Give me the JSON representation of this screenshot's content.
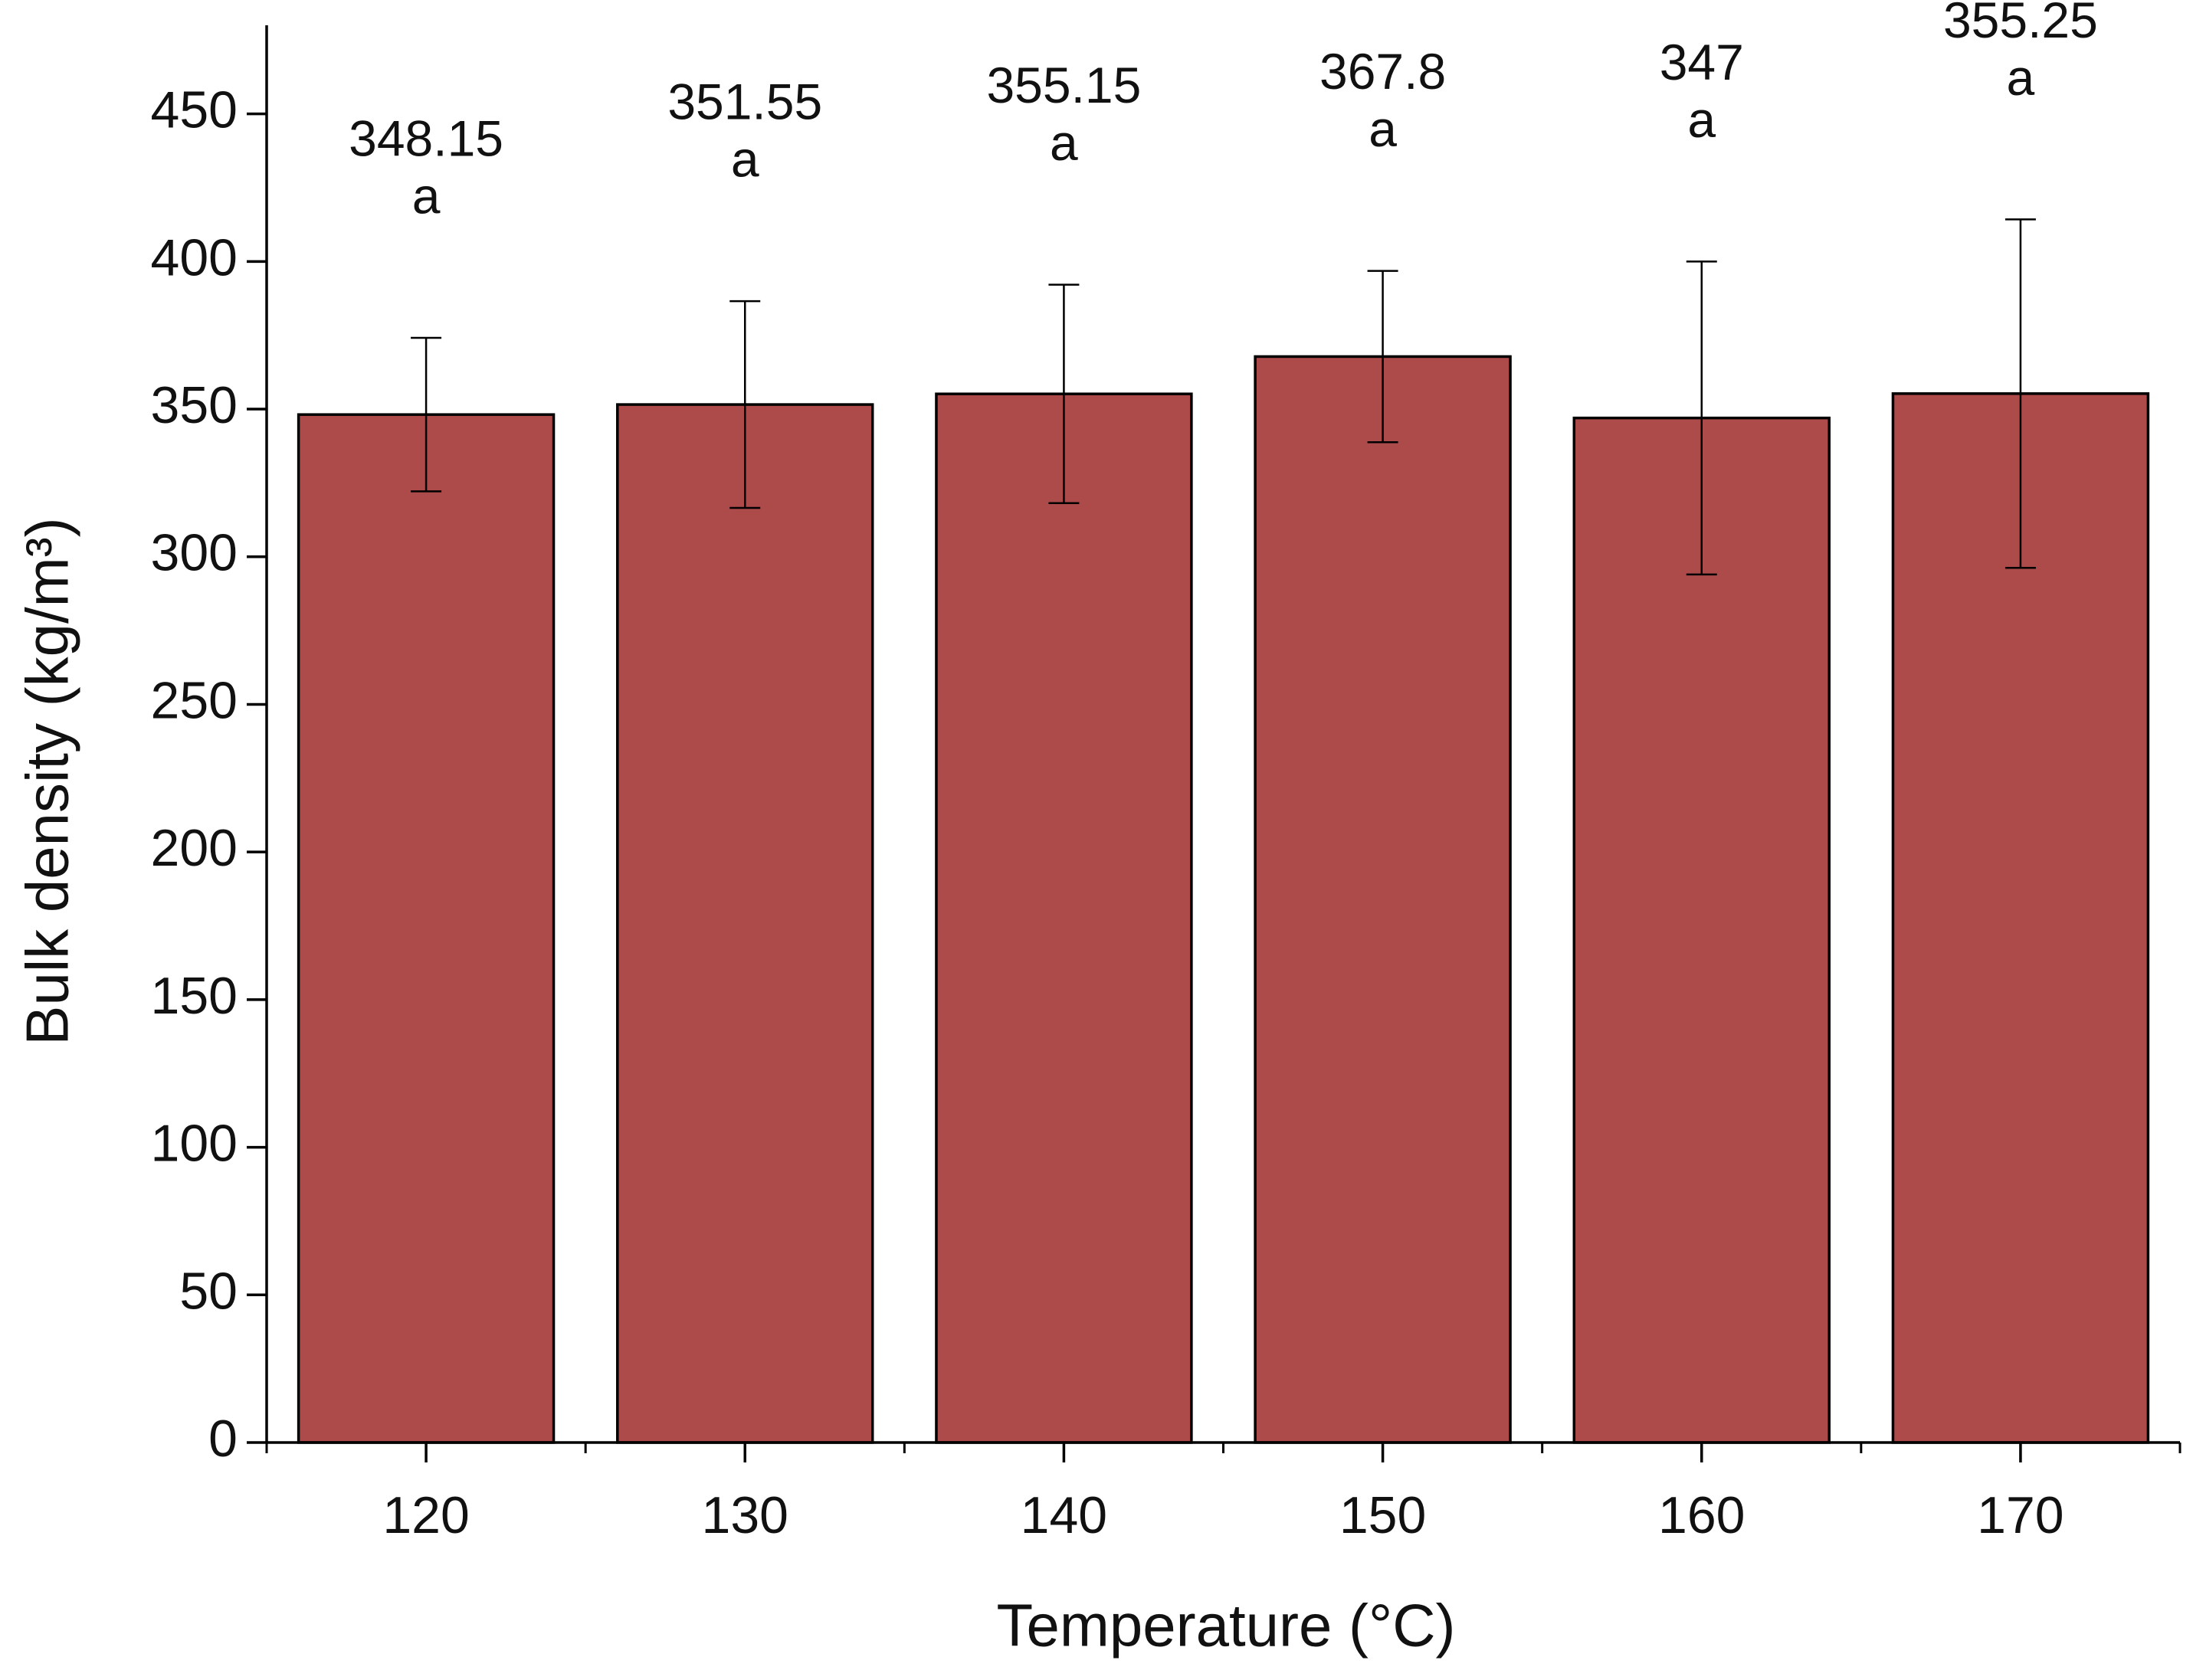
{
  "chart_data": {
    "type": "bar",
    "x_label": "Temperature (°C)",
    "y_label": "Bulk density (kg/m³)",
    "categories": [
      "120",
      "130",
      "140",
      "150",
      "160",
      "170"
    ],
    "values": [
      348.15,
      351.55,
      355.15,
      367.8,
      347,
      355.25
    ],
    "errors": [
      26,
      35,
      37,
      29,
      53,
      59
    ],
    "group_letters": [
      "a",
      "a",
      "a",
      "a",
      "a",
      "a"
    ],
    "color": "#ad4a4a",
    "ylim": [
      0,
      480
    ],
    "yticks": [
      0,
      50,
      100,
      150,
      200,
      250,
      300,
      350,
      400,
      450
    ],
    "grid": false
  }
}
